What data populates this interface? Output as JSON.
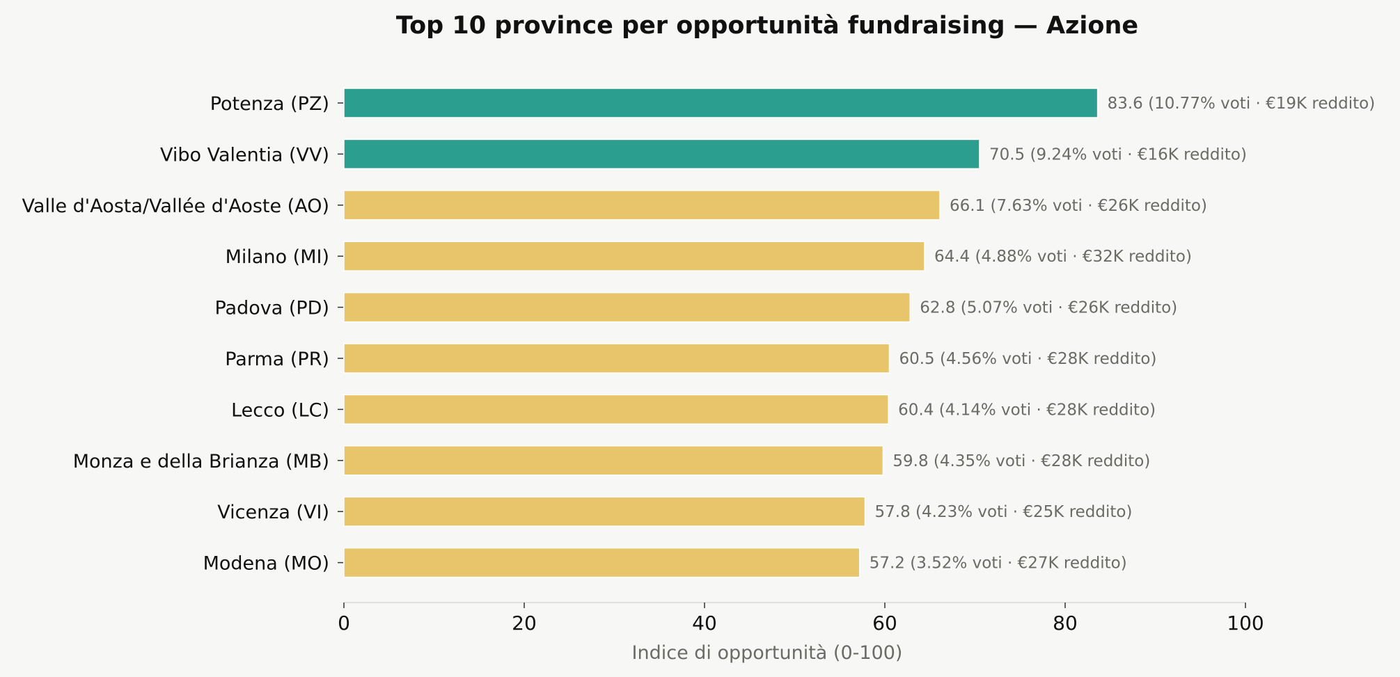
{
  "chart_data": {
    "type": "bar",
    "orientation": "horizontal",
    "title": "Top 10 province per opportunità fundraising — Azione",
    "xlabel": "Indice di opportunità (0-100)",
    "ylabel": "",
    "xlim": [
      0,
      100
    ],
    "xticks": [
      0,
      20,
      40,
      60,
      80,
      100
    ],
    "grid": false,
    "colors": {
      "highlight": "#2b9e8f",
      "normal": "#e8c56b",
      "axis": "#d8d8d4"
    },
    "bars": [
      {
        "category": "Potenza (PZ)",
        "value": 83.6,
        "label": "83.6  (10.77% voti · €19K reddito)",
        "highlight": true
      },
      {
        "category": "Vibo Valentia (VV)",
        "value": 70.5,
        "label": "70.5  (9.24% voti · €16K reddito)",
        "highlight": true
      },
      {
        "category": "Valle d'Aosta/Vallée d'Aoste (AO)",
        "value": 66.1,
        "label": "66.1  (7.63% voti · €26K reddito)",
        "highlight": false
      },
      {
        "category": "Milano (MI)",
        "value": 64.4,
        "label": "64.4  (4.88% voti · €32K reddito)",
        "highlight": false
      },
      {
        "category": "Padova (PD)",
        "value": 62.8,
        "label": "62.8  (5.07% voti · €26K reddito)",
        "highlight": false
      },
      {
        "category": "Parma (PR)",
        "value": 60.5,
        "label": "60.5  (4.56% voti · €28K reddito)",
        "highlight": false
      },
      {
        "category": "Lecco (LC)",
        "value": 60.4,
        "label": "60.4  (4.14% voti · €28K reddito)",
        "highlight": false
      },
      {
        "category": "Monza e della Brianza (MB)",
        "value": 59.8,
        "label": "59.8  (4.35% voti · €28K reddito)",
        "highlight": false
      },
      {
        "category": "Vicenza (VI)",
        "value": 57.8,
        "label": "57.8  (4.23% voti · €25K reddito)",
        "highlight": false
      },
      {
        "category": "Modena (MO)",
        "value": 57.2,
        "label": "57.2  (3.52% voti · €27K reddito)",
        "highlight": false
      }
    ]
  }
}
